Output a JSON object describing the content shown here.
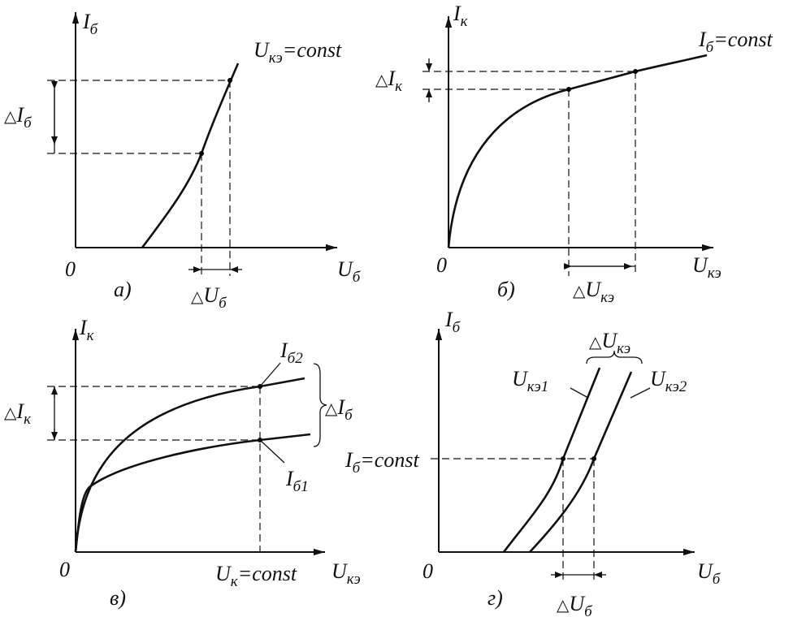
{
  "panels": [
    {
      "caption": "а)",
      "origin": "0",
      "labels": [
        {
          "main": "I",
          "sub": "б"
        },
        {
          "main": "U",
          "sub": "кэ",
          "post": "=const"
        },
        {
          "pre": "△",
          "main": "I",
          "sub": "б"
        },
        {
          "main": "U",
          "sub": "б"
        },
        {
          "pre": "△",
          "main": "U",
          "sub": "б"
        }
      ]
    },
    {
      "caption": "б)",
      "origin": "0",
      "labels": [
        {
          "main": "I",
          "sub": "к"
        },
        {
          "main": "I",
          "sub": "б",
          "post": "=const"
        },
        {
          "pre": "△",
          "main": "I",
          "sub": "к"
        },
        {
          "main": "U",
          "sub": "кэ"
        },
        {
          "pre": "△",
          "main": "U",
          "sub": "кэ"
        }
      ]
    },
    {
      "caption": "в)",
      "origin": "0",
      "labels": [
        {
          "main": "I",
          "sub": "к"
        },
        {
          "main": "I",
          "sub": "б2"
        },
        {
          "pre": "△",
          "main": "I",
          "sub": "б"
        },
        {
          "pre": "△",
          "main": "I",
          "sub": "к"
        },
        {
          "main": "I",
          "sub": "б1"
        },
        {
          "main": "U",
          "sub": "к",
          "post": "=const"
        },
        {
          "main": "U",
          "sub": "кэ"
        }
      ]
    },
    {
      "caption": "г)",
      "origin": "0",
      "labels": [
        {
          "main": "I",
          "sub": "б"
        },
        {
          "pre": "△",
          "main": "U",
          "sub": "кэ"
        },
        {
          "main": "U",
          "sub": "кэ1"
        },
        {
          "main": "U",
          "sub": "кэ2"
        },
        {
          "main": "I",
          "sub": "б",
          "post": "=const"
        },
        {
          "main": "U",
          "sub": "б"
        },
        {
          "pre": "△",
          "main": "U",
          "sub": "б"
        }
      ]
    }
  ]
}
